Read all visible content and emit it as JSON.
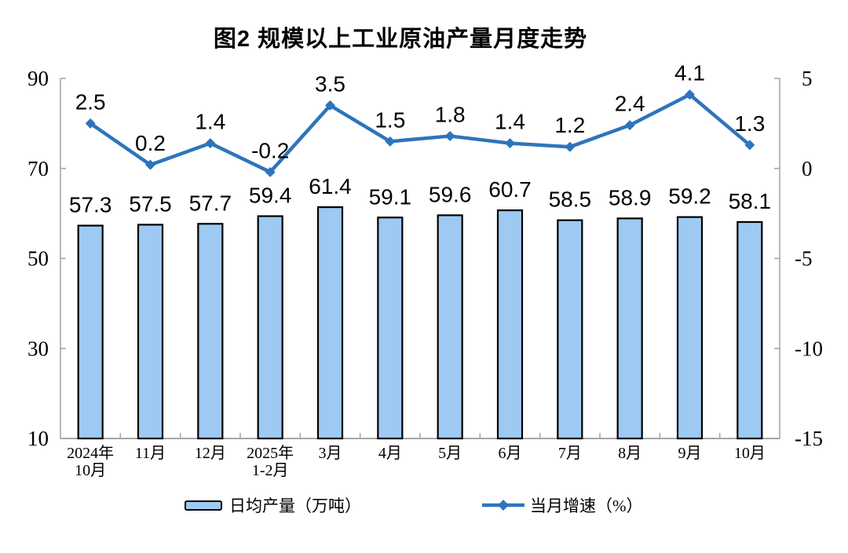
{
  "title": "图2 规模以上工业原油产量月度走势",
  "chart_data": {
    "type": "bar+line",
    "categories": [
      "2024年\n10月",
      "11月",
      "12月",
      "2025年\n1-2月",
      "3月",
      "4月",
      "5月",
      "6月",
      "7月",
      "8月",
      "9月",
      "10月"
    ],
    "series": [
      {
        "name": "日均产量（万吨）",
        "type": "bar",
        "axis": "left",
        "values": [
          57.3,
          57.5,
          57.7,
          59.4,
          61.4,
          59.1,
          59.6,
          60.7,
          58.5,
          58.9,
          59.2,
          58.1
        ]
      },
      {
        "name": "当月增速（%）",
        "type": "line",
        "axis": "right",
        "values": [
          2.5,
          0.2,
          1.4,
          -0.2,
          3.5,
          1.5,
          1.8,
          1.4,
          1.2,
          2.4,
          4.1,
          1.3
        ]
      }
    ],
    "left_axis": {
      "min": 10,
      "max": 90,
      "ticks": [
        10,
        30,
        50,
        70,
        90
      ]
    },
    "right_axis": {
      "min": -15,
      "max": 5,
      "ticks": [
        -15,
        -10,
        -5,
        0,
        5
      ]
    },
    "grid": false,
    "legend_position": "bottom",
    "colors": {
      "bar_fill": "#9DC9F2",
      "bar_border": "#000000",
      "line": "#2E74BC",
      "axis": "#A6A6A6",
      "text": "#000000"
    }
  }
}
